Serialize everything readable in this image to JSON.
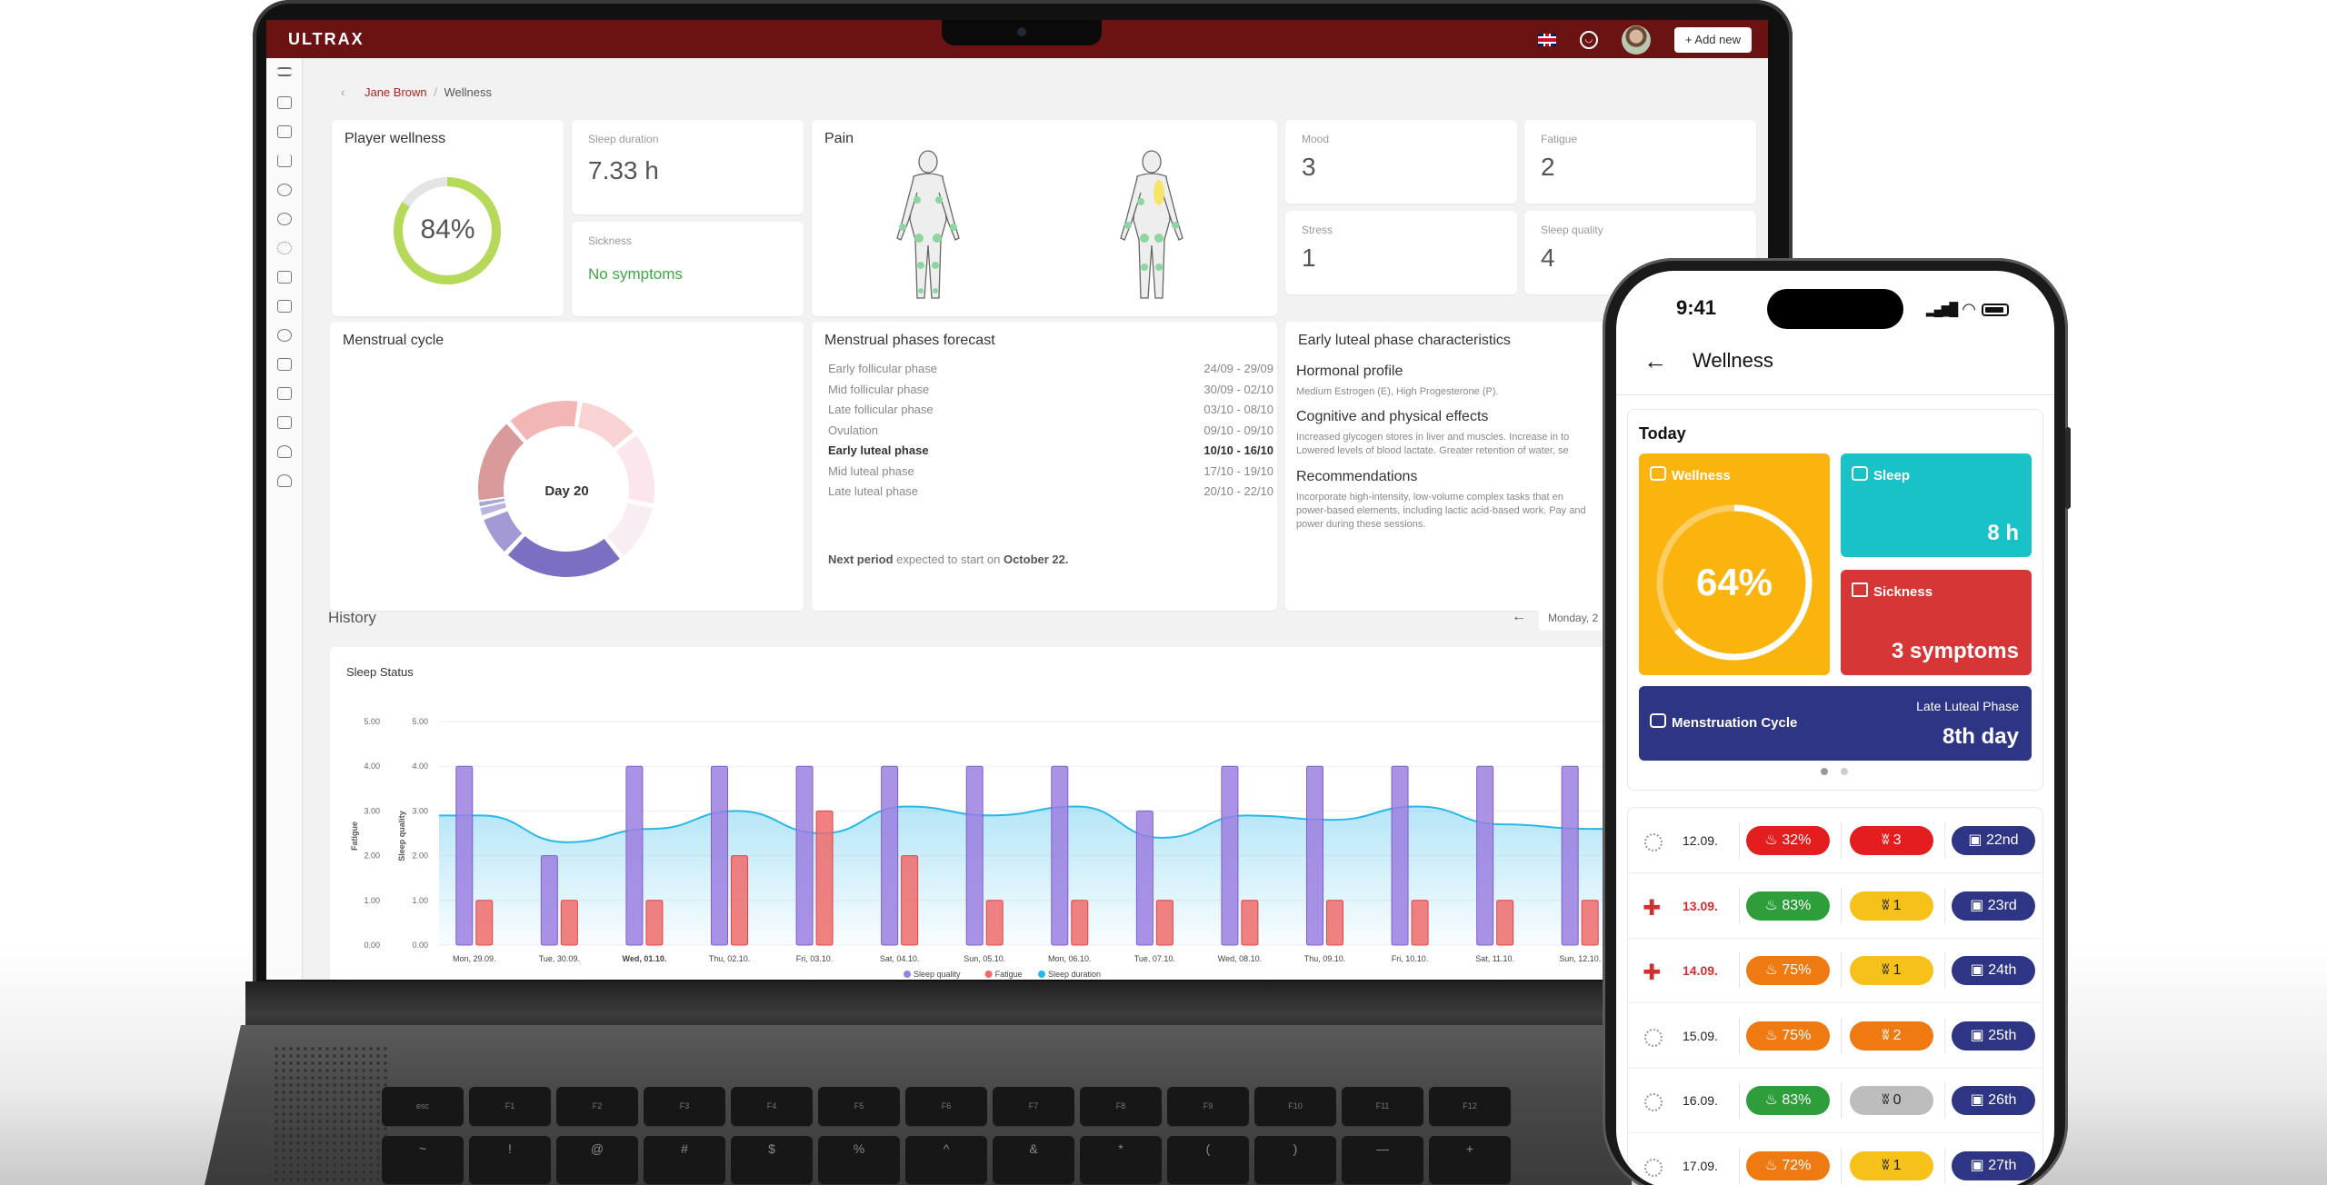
{
  "app": {
    "logo": "ULTRAX",
    "add_new": "+ Add new"
  },
  "breadcrumb": {
    "back": "‹",
    "parent": "Jane Brown",
    "sep": "/",
    "current": "Wellness"
  },
  "player_wellness": {
    "title": "Player wellness",
    "value": "84%",
    "fraction": 0.84
  },
  "sleep_duration": {
    "label": "Sleep duration",
    "value": "7.33 h"
  },
  "sickness": {
    "label": "Sickness",
    "value": "No symptoms"
  },
  "pain": {
    "title": "Pain"
  },
  "mood": {
    "label": "Mood",
    "value": "3"
  },
  "fatigue": {
    "label": "Fatigue",
    "value": "2"
  },
  "stress": {
    "label": "Stress",
    "value": "1"
  },
  "sleep_quality": {
    "label": "Sleep quality",
    "value": "4"
  },
  "menstrual_cycle": {
    "title": "Menstrual cycle",
    "center": "Day 20"
  },
  "forecast": {
    "title": "Menstrual phases forecast",
    "rows": [
      {
        "phase": "Early follicular phase",
        "dates": "24/09 - 29/09"
      },
      {
        "phase": "Mid follicular phase",
        "dates": "30/09 - 02/10"
      },
      {
        "phase": "Late follicular phase",
        "dates": "03/10 - 08/10"
      },
      {
        "phase": "Ovulation",
        "dates": "09/10 - 09/10"
      },
      {
        "phase": "Early luteal phase",
        "dates": "10/10 - 16/10"
      },
      {
        "phase": "Mid luteal phase",
        "dates": "17/10 - 19/10"
      },
      {
        "phase": "Late luteal phase",
        "dates": "20/10 - 22/10"
      }
    ],
    "next_a": "Next period",
    "next_b": "expected to start on",
    "next_c": "October 22."
  },
  "characteristics": {
    "title": "Early luteal phase characteristics",
    "h1": "Hormonal profile",
    "t1": "Medium Estrogen (E), High Progesterone (P).",
    "h2": "Cognitive and physical effects",
    "t2": "Increased glycogen stores in liver and muscles. Increase in to Lowered levels of blood lactate. Greater retention of water, se",
    "h3": "Recommendations",
    "t3": "Incorporate high-intensity, low-volume complex tasks that en power-based elements, including lactic acid-based work. Pay and power during these sessions."
  },
  "history": {
    "title": "History",
    "date_select": "Monday, 2"
  },
  "chart_data": {
    "type": "bar",
    "title": "Sleep Status",
    "ylabel_left": "Fatigue",
    "ylabel_right": "Sleep quality",
    "yticks": [
      "0.00",
      "1.00",
      "2.00",
      "3.00",
      "4.00",
      "5.00"
    ],
    "ylim": [
      0,
      5
    ],
    "categories": [
      "Mon, 29.09.",
      "Tue, 30.09.",
      "Wed, 01.10.",
      "Thu, 02.10.",
      "Fri, 03.10.",
      "Sat, 04.10.",
      "Sun, 05.10.",
      "Mon, 06.10.",
      "Tue, 07.10.",
      "Wed, 08.10.",
      "Thu, 09.10.",
      "Fri, 10.10.",
      "Sat, 11.10.",
      "Sun, 12.10."
    ],
    "series": [
      {
        "name": "Sleep quality",
        "type": "bar",
        "color": "#9b7fe0",
        "values": [
          4,
          2,
          4,
          4,
          4,
          4,
          4,
          4,
          3,
          4,
          4,
          4,
          4,
          4
        ]
      },
      {
        "name": "Fatigue",
        "type": "bar",
        "color": "#ee6b6b",
        "values": [
          1,
          1,
          1,
          2,
          3,
          2,
          1,
          1,
          1,
          1,
          1,
          1,
          1,
          1
        ]
      },
      {
        "name": "Sleep duration",
        "type": "area",
        "color": "#2ab7e8",
        "values": [
          2.9,
          2.3,
          2.6,
          3.0,
          2.5,
          3.1,
          2.9,
          3.1,
          2.4,
          2.9,
          2.8,
          3.1,
          2.7,
          2.6
        ]
      }
    ],
    "legend_position": "bottom"
  },
  "phone": {
    "time": "9:41",
    "title": "Wellness",
    "today": "Today",
    "wellness": {
      "label": "Wellness",
      "value": "64%",
      "fraction": 0.64,
      "color": "#fbb30e"
    },
    "sleep": {
      "label": "Sleep",
      "value": "8 h",
      "color": "#18c2c6"
    },
    "sickness": {
      "label": "Sickness",
      "value": "3 symptoms",
      "color": "#d63636"
    },
    "menstruation": {
      "label": "Menstruation Cycle",
      "phase": "Late Luteal Phase",
      "value": "8th day",
      "color": "#2e3584"
    },
    "history": [
      {
        "date": "12.09.",
        "sick": false,
        "w": "32%",
        "wc": "#e41e1e",
        "f": "3",
        "fc": "#e41e1e",
        "d": "22nd"
      },
      {
        "date": "13.09.",
        "sick": true,
        "w": "83%",
        "wc": "#2e9e3a",
        "f": "1",
        "fc": "#f6c21a",
        "d": "23rd"
      },
      {
        "date": "14.09.",
        "sick": true,
        "w": "75%",
        "wc": "#f07a12",
        "f": "1",
        "fc": "#f6c21a",
        "d": "24th"
      },
      {
        "date": "15.09.",
        "sick": false,
        "w": "75%",
        "wc": "#f07a12",
        "f": "2",
        "fc": "#f07a12",
        "d": "25th"
      },
      {
        "date": "16.09.",
        "sick": false,
        "w": "83%",
        "wc": "#2e9e3a",
        "f": "0",
        "fc": "#bdbdbd",
        "d": "26th"
      },
      {
        "date": "17.09.",
        "sick": false,
        "w": "72%",
        "wc": "#f07a12",
        "f": "1",
        "fc": "#f6c21a",
        "d": "27th"
      }
    ]
  },
  "keyboard": {
    "row1": [
      "esc",
      "F1",
      "F2",
      "F3",
      "F4",
      "F5",
      "F6",
      "F7",
      "F8",
      "F9",
      "F10",
      "F11",
      "F12"
    ],
    "row2": [
      "~",
      "!",
      "@",
      "#",
      "$",
      "%",
      "^",
      "&",
      "*",
      "(",
      ")",
      "—",
      "+"
    ]
  }
}
